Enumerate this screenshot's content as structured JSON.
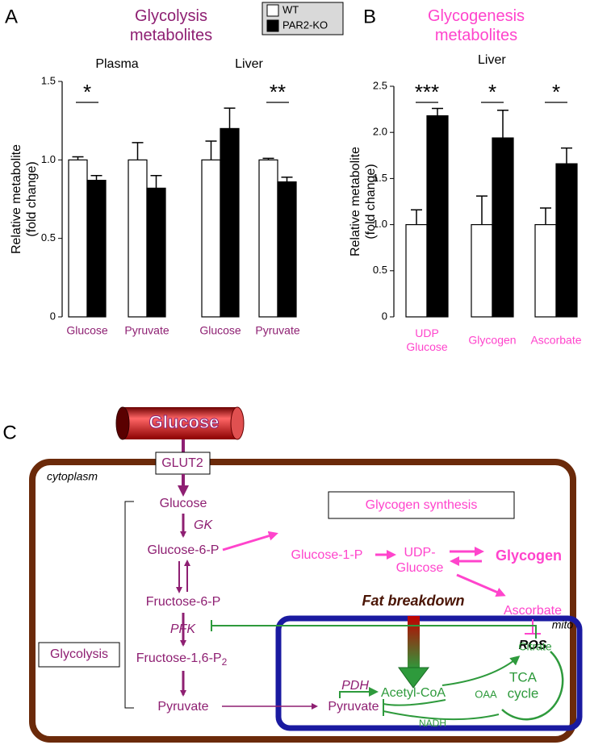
{
  "panel_labels": [
    "A",
    "B",
    "C"
  ],
  "chart_data": [
    {
      "type": "bar",
      "title": "Glycolysis metabolites",
      "title_color": "#8e1f72",
      "groups": [
        "Plasma",
        "Liver"
      ],
      "ylabel": "Relative metabolite (fold change)",
      "categories": [
        "Glucose",
        "Pyruvate",
        "Glucose",
        "Pyruvate"
      ],
      "category_color": "#8e1f72",
      "series": [
        {
          "name": "WT",
          "color": "#ffffff",
          "values": [
            1.0,
            1.0,
            1.0,
            1.0
          ],
          "errors": [
            0.02,
            0.11,
            0.12,
            0.01
          ]
        },
        {
          "name": "PAR2-KO",
          "color": "#000000",
          "values": [
            0.87,
            0.82,
            1.2,
            0.86
          ],
          "errors": [
            0.03,
            0.08,
            0.13,
            0.03
          ]
        }
      ],
      "significance": [
        "*",
        null,
        null,
        "**"
      ],
      "ylim": [
        0,
        1.5
      ],
      "yticks": [
        0,
        0.5,
        {
          "value": 1,
          "label": "1.0"
        },
        1.5
      ]
    },
    {
      "type": "bar",
      "title": "Glycogenesis metabolites",
      "title_color": "#ff44cc",
      "groups": [
        "Liver"
      ],
      "ylabel": "Relative metabolite (fold change)",
      "categories": [
        "UDP Glucose",
        "Glycogen",
        "Ascorbate"
      ],
      "category_color": "#ff44cc",
      "series": [
        {
          "color": "#ffffff",
          "values": [
            1.0,
            1.0,
            1.0
          ],
          "errors": [
            0.16,
            0.31,
            0.18
          ]
        },
        {
          "color": "#000000",
          "values": [
            2.18,
            1.94,
            1.66
          ],
          "errors": [
            0.08,
            0.3,
            0.17
          ]
        }
      ],
      "significance": [
        "***",
        "*",
        "*"
      ],
      "ylim": [
        0,
        2.5
      ],
      "yticks": [
        0,
        0.5,
        {
          "value": 1,
          "label": "1.0"
        },
        1.5,
        {
          "value": 2,
          "label": "2.0"
        },
        2.5
      ]
    }
  ],
  "diagram": {
    "glucose_tube": "Glucose",
    "glut2": "GLUT2",
    "cytoplasm": "cytoplasm",
    "glucose": "Glucose",
    "gk": "GK",
    "glucose_6p": "Glucose-6-P",
    "fructose_6p": "Fructose-6-P",
    "pfk": "PFK",
    "fructose_16p": "Fructose-1,6-P",
    "fructose_16p_sub": "2",
    "pyruvate": "Pyruvate",
    "glycolysis": "Glycolysis",
    "glycogen_synthesis": "Glycogen synthesis",
    "glucose_1p": "Glucose-1-P",
    "udp_glucose": "UDP- Glucose",
    "glycogen": "Glycogen",
    "ascorbate": "Ascorbate",
    "ros": "ROS",
    "fat_breakdown": "Fat breakdown",
    "mito": "mito",
    "citrate": "Citrate",
    "acetyl_coa": "Acetyl-CoA",
    "tca_cycle": "TCA cycle",
    "oaa": "OAA",
    "pdh": "PDH",
    "mito_pyruvate": "Pyruvate",
    "nadh": "NADH"
  }
}
